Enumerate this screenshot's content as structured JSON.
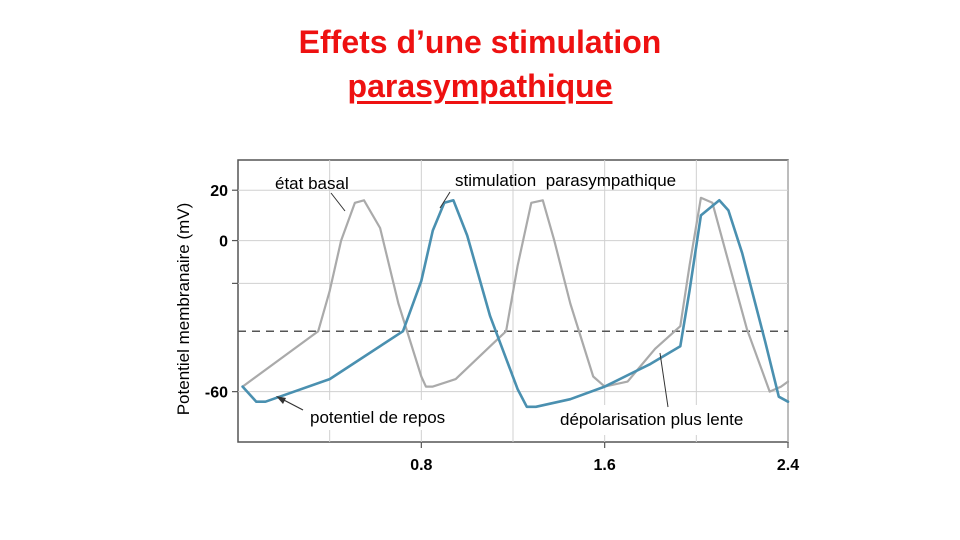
{
  "slide": {
    "title_line1": "Effets d’une stimulation",
    "title_line2": "parasympathique"
  },
  "colors": {
    "title": "#ee1111",
    "basal": "#aaaaaa",
    "parasympathetic": "#4a90b0",
    "grid": "#d0d0d0",
    "threshold": "#555555"
  },
  "chart_data": {
    "type": "line",
    "title": "",
    "xlabel": "",
    "ylabel": "Potentiel membranaire  (mV)",
    "xlim": [
      0,
      2.4
    ],
    "ylim": [
      -80,
      32
    ],
    "x_ticks": [
      {
        "value": 0.8,
        "label": "0.8"
      },
      {
        "value": 1.6,
        "label": "1.6"
      },
      {
        "value": 2.4,
        "label": "2.4"
      }
    ],
    "y_ticks": [
      {
        "value": 20,
        "label": "20"
      },
      {
        "value": 0,
        "label": "0"
      },
      {
        "value": -17,
        "label": ""
      },
      {
        "value": -60,
        "label": "-60"
      }
    ],
    "grid": true,
    "threshold_mV": -36,
    "series": [
      {
        "name": "état basal",
        "color": "#aaaaaa",
        "x": [
          0.02,
          0.35,
          0.4,
          0.45,
          0.51,
          0.55,
          0.62,
          0.7,
          0.8,
          0.82,
          0.85,
          0.95,
          1.1,
          1.17,
          1.22,
          1.28,
          1.33,
          1.38,
          1.45,
          1.55,
          1.6,
          1.7,
          1.82,
          1.93,
          1.97,
          2.02,
          2.07,
          2.13,
          2.22,
          2.32,
          2.37,
          2.4
        ],
        "y": [
          -58,
          -36,
          -20,
          0,
          15,
          16,
          5,
          -25,
          -54,
          -58,
          -58,
          -55,
          -42,
          -36,
          -10,
          15,
          16,
          0,
          -25,
          -54,
          -58,
          -56,
          -43,
          -34,
          -10,
          17,
          15,
          -5,
          -35,
          -60,
          -58,
          -56
        ]
      },
      {
        "name": "stimulation parasympathique",
        "color": "#4a90b0",
        "x": [
          0.02,
          0.08,
          0.12,
          0.4,
          0.72,
          0.8,
          0.85,
          0.9,
          0.94,
          1.0,
          1.1,
          1.22,
          1.26,
          1.3,
          1.45,
          1.6,
          1.8,
          1.93,
          1.97,
          2.02,
          2.1,
          2.14,
          2.2,
          2.3,
          2.36,
          2.4
        ],
        "y": [
          -58,
          -64,
          -64,
          -55,
          -36,
          -16,
          4,
          15,
          16,
          2,
          -30,
          -59,
          -66,
          -66,
          -63,
          -58,
          -49,
          -42,
          -20,
          10,
          16,
          12,
          -5,
          -40,
          -62,
          -64
        ]
      }
    ],
    "annotations": [
      {
        "text": "état basal"
      },
      {
        "text": "stimulation  parasympathique"
      },
      {
        "text": "potentiel de repos"
      },
      {
        "text": "dépolarisation plus lente"
      }
    ]
  }
}
